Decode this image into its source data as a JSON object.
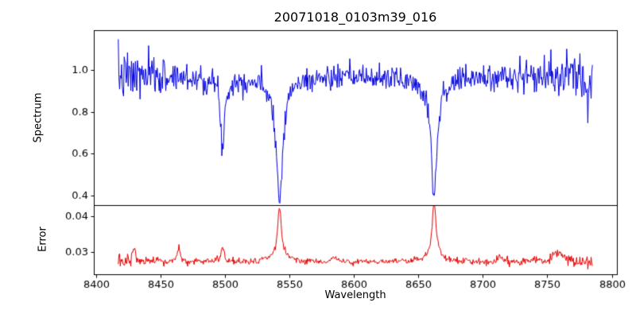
{
  "figure": {
    "title": "20071018_0103m39_016",
    "xlabel": "Wavelength",
    "colors": {
      "background": "#ffffff",
      "frame": "#000000",
      "text": "#000000",
      "spectrum_line": "#0000dd",
      "error_line": "#e60000"
    }
  },
  "chart_data": [
    {
      "type": "line",
      "name": "spectrum",
      "ylabel": "Spectrum",
      "series_color": "#0000dd",
      "x_range": [
        8417,
        8785
      ],
      "xlim": [
        8398,
        8804
      ],
      "ylim": [
        0.355,
        1.19
      ],
      "yticks": [
        0.4,
        0.6,
        0.8,
        1.0
      ],
      "ytick_labels": [
        "0.4",
        "0.6",
        "0.8",
        "1.0"
      ],
      "baseline": 0.97,
      "noise_std": 0.028,
      "edge_noise": 1.3,
      "n_points": 720,
      "seed": 7,
      "features": [
        {
          "center": 8498.0,
          "sign": -1,
          "depth": 0.33,
          "width": 1.5,
          "broad_depth": 0.03,
          "broad_width": 8
        },
        {
          "center": 8542.1,
          "sign": -1,
          "depth": 0.56,
          "width": 2.8,
          "broad_depth": 0.04,
          "broad_width": 12
        },
        {
          "center": 8662.1,
          "sign": -1,
          "depth": 0.52,
          "width": 2.5,
          "broad_depth": 0.05,
          "broad_width": 12
        }
      ]
    },
    {
      "type": "line",
      "name": "error",
      "ylabel": "Error",
      "series_color": "#e60000",
      "x_range": [
        8417,
        8785
      ],
      "xlim": [
        8398,
        8804
      ],
      "ylim": [
        0.0238,
        0.0432
      ],
      "yticks": [
        0.03,
        0.04
      ],
      "ytick_labels": [
        "0.03",
        "0.04"
      ],
      "xticks": [
        8400,
        8450,
        8500,
        8550,
        8600,
        8650,
        8700,
        8750,
        8800
      ],
      "xtick_labels": [
        "8400",
        "8450",
        "8500",
        "8550",
        "8600",
        "8650",
        "8700",
        "8750",
        "8800"
      ],
      "baseline": 0.0272,
      "noise_std": 0.00045,
      "edge_noise": 1.0,
      "n_points": 720,
      "seed": 13,
      "features": [
        {
          "center": 8429.0,
          "sign": 1,
          "depth": 0.0035,
          "width": 1.5
        },
        {
          "center": 8464.0,
          "sign": 1,
          "depth": 0.0038,
          "width": 1.5
        },
        {
          "center": 8498.0,
          "sign": 1,
          "depth": 0.0042,
          "width": 1.5
        },
        {
          "center": 8542.1,
          "sign": 1,
          "depth": 0.0135,
          "width": 1.8,
          "broad_depth": 0.0015,
          "broad_width": 8
        },
        {
          "center": 8585.0,
          "sign": 1,
          "depth": 0.0012,
          "width": 2.5
        },
        {
          "center": 8662.1,
          "sign": 1,
          "depth": 0.0148,
          "width": 1.8,
          "broad_depth": 0.0015,
          "broad_width": 8
        },
        {
          "center": 8713.0,
          "sign": 1,
          "depth": 0.0015,
          "width": 2.5
        },
        {
          "center": 8758.0,
          "sign": 1,
          "depth": 0.0025,
          "width": 5
        }
      ]
    }
  ]
}
